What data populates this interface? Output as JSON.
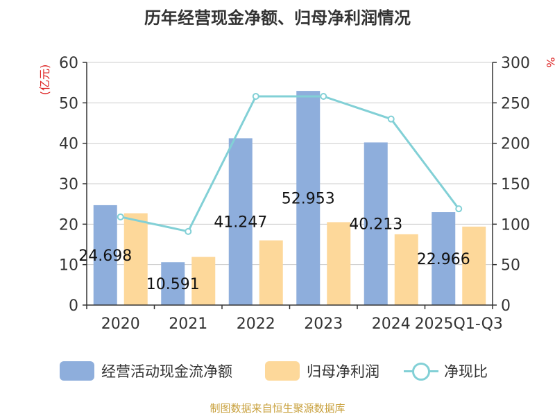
{
  "chart_title": "历年经营现金净额、归母净利润情况",
  "source": "制图数据来自恒生聚源数据库",
  "chart_data": {
    "type": "bar",
    "title": "历年经营现金净额、归母净利润情况",
    "categories": [
      "2020",
      "2021",
      "2022",
      "2023",
      "2024",
      "2025Q1-Q3"
    ],
    "y_left": {
      "label": "(亿元)",
      "ticks": [
        "0",
        "10",
        "20",
        "30",
        "40",
        "50",
        "60"
      ],
      "range": [
        0,
        60
      ]
    },
    "y_right": {
      "label": "%",
      "ticks": [
        "0",
        "50",
        "100",
        "150",
        "200",
        "250",
        "300"
      ],
      "range": [
        0,
        300
      ]
    },
    "series": [
      {
        "name": "经营活动现金流净额",
        "type": "bar",
        "axis": "left",
        "color": "#8eaedc",
        "values": [
          24.698,
          10.591,
          41.247,
          52.953,
          40.213,
          22.966
        ],
        "labels": [
          "24.698",
          "10.591",
          "41.247",
          "52.953",
          "40.213",
          "22.966"
        ]
      },
      {
        "name": "归母净利润",
        "type": "bar",
        "axis": "left",
        "color": "#fdd89a",
        "values": [
          22.7,
          11.9,
          16.0,
          20.5,
          17.5,
          19.4
        ]
      },
      {
        "name": "净现比",
        "type": "line",
        "axis": "right",
        "color": "#82d0d6",
        "values": [
          109,
          91,
          258,
          258,
          230,
          119
        ]
      }
    ],
    "grid": true,
    "legend_position": "bottom"
  },
  "legend": {
    "item1": "经营活动现金流净额",
    "item2": "归母净利润",
    "item3": "净现比"
  }
}
